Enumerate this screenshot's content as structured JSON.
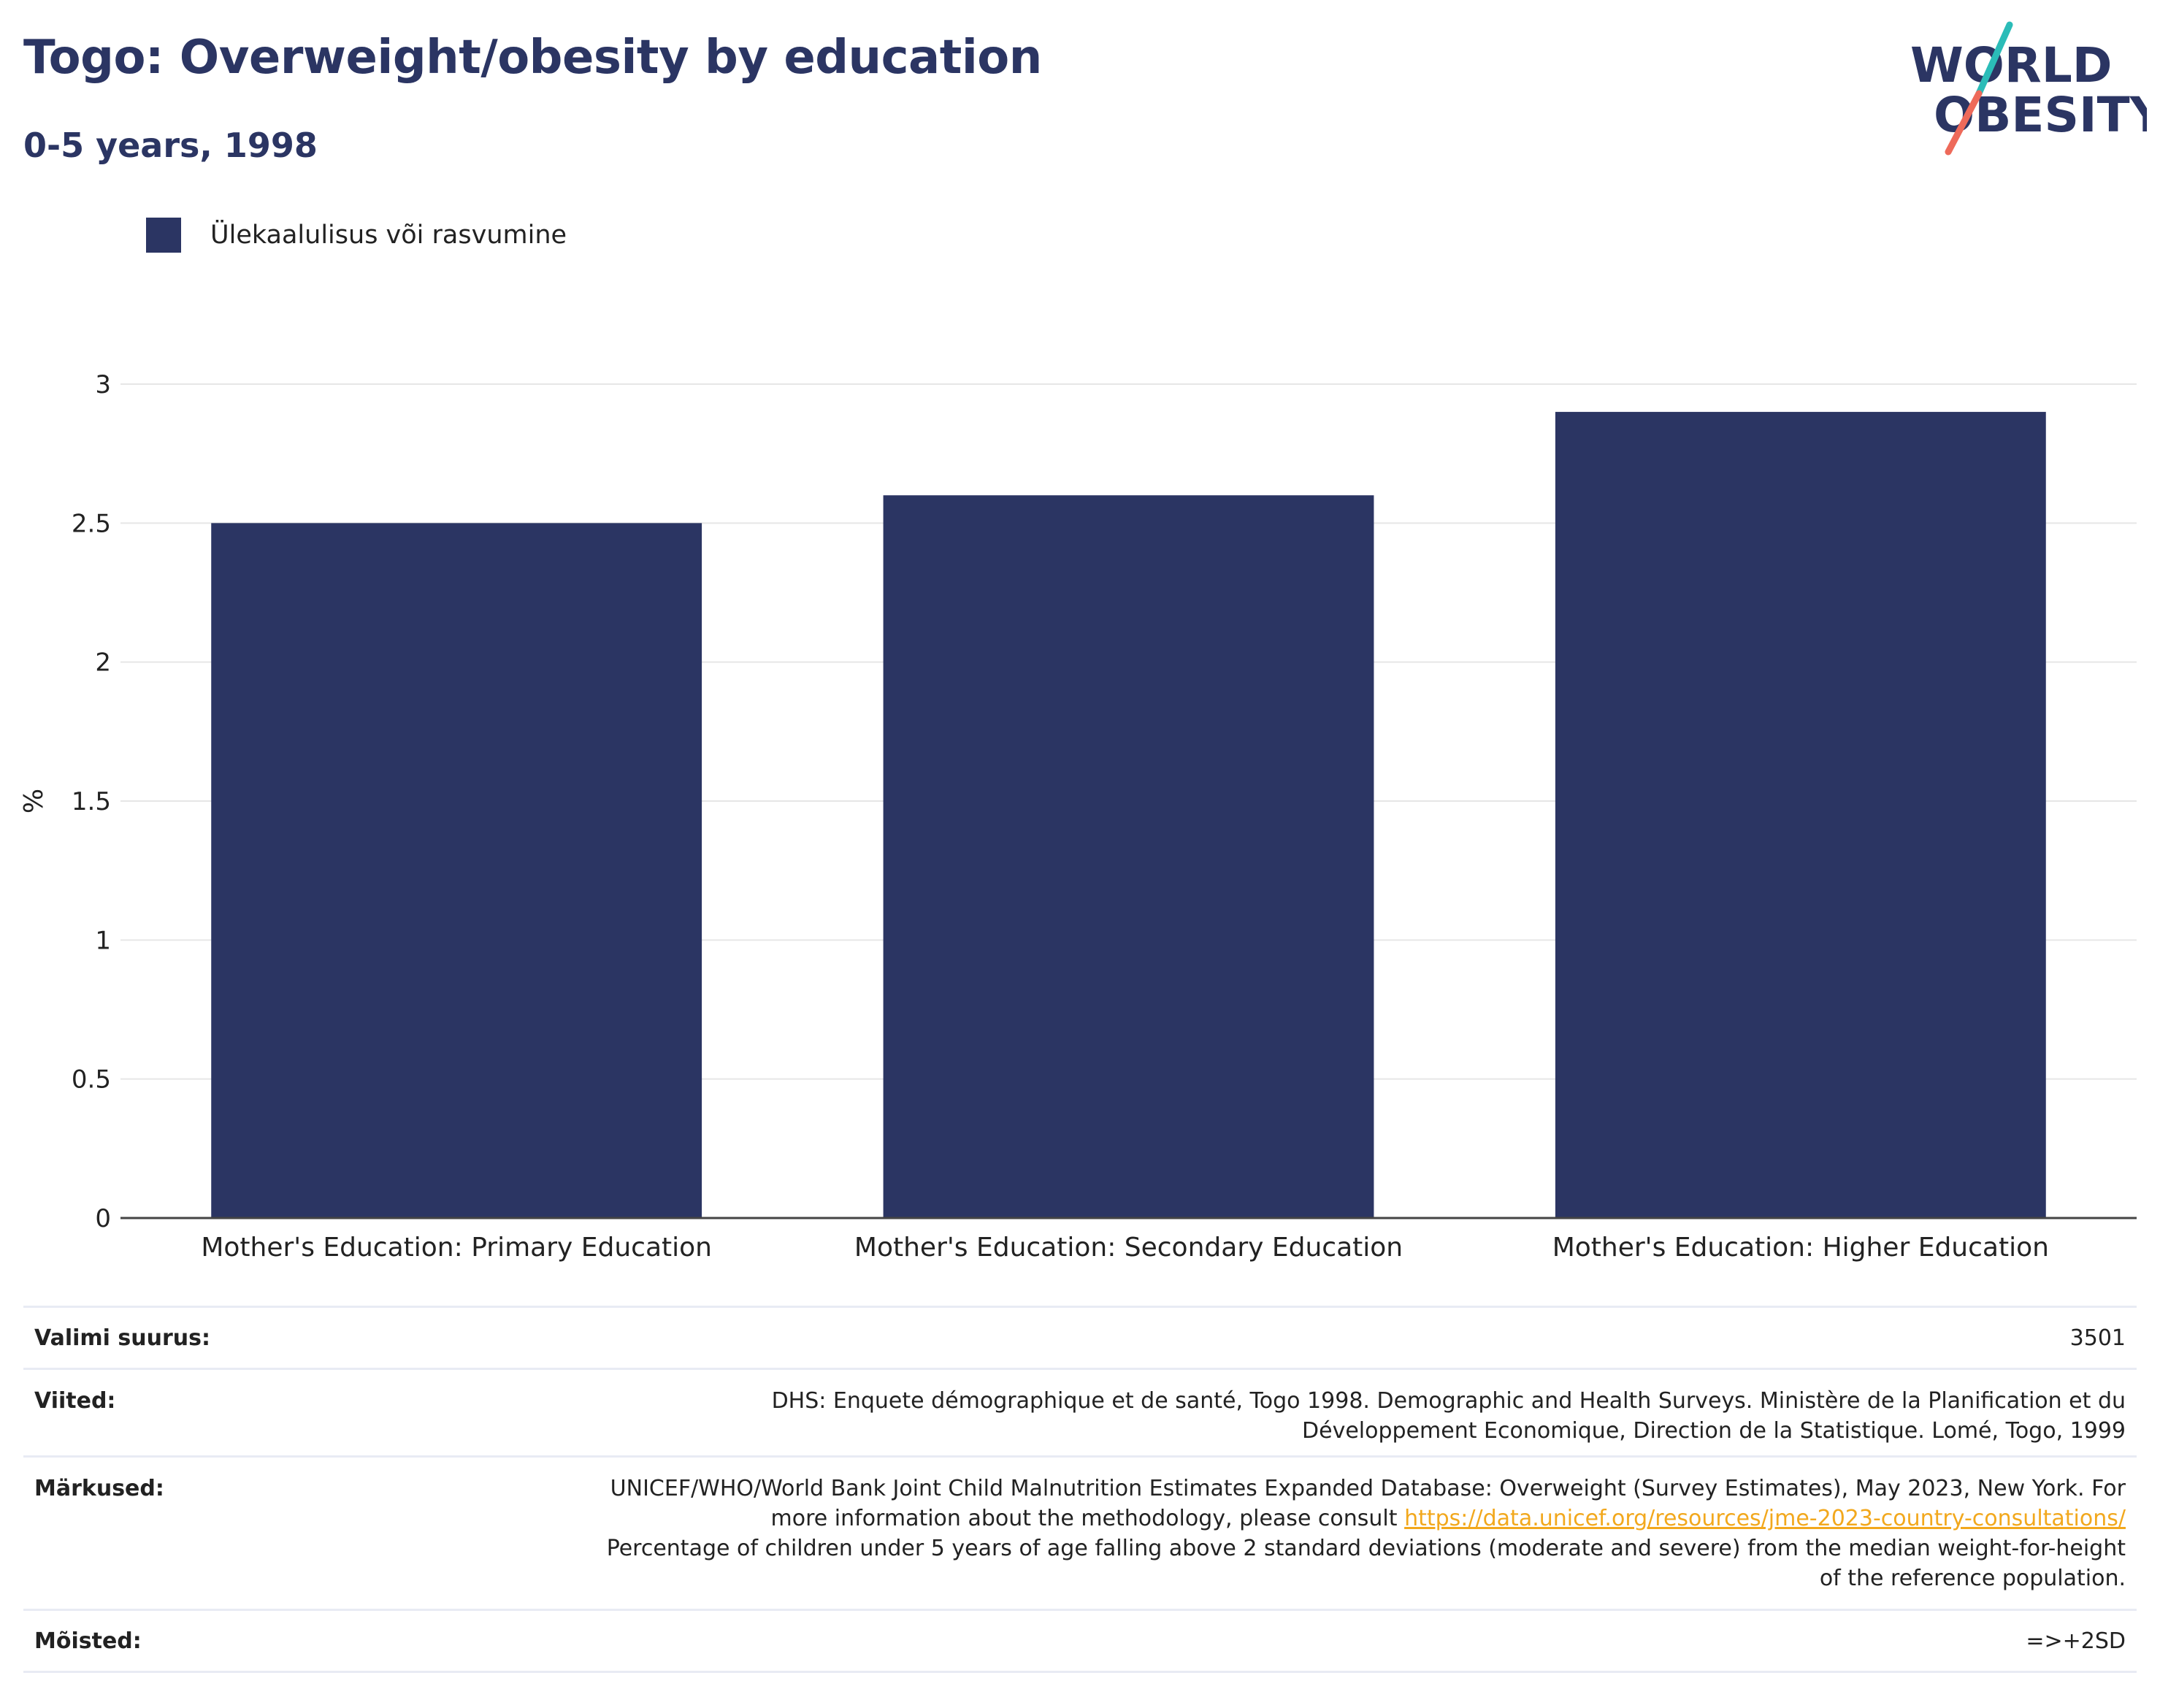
{
  "header": {
    "title": "Togo: Overweight/obesity by education",
    "subtitle": "0-5 years, 1998",
    "logo_line1": "WORLD",
    "logo_line2": "OBESITY"
  },
  "colors": {
    "bar": "#2b3563",
    "title": "#2b3563",
    "gridline": "#e6e6e6",
    "link": "#f2a81d",
    "logo_teal": "#2bbcb8",
    "logo_coral": "#ee6a5a"
  },
  "chart_data": {
    "type": "bar",
    "title": "Togo: Overweight/obesity by education",
    "subtitle": "0-5 years, 1998",
    "categories": [
      "Mother's Education: Primary Education",
      "Mother's Education: Secondary Education",
      "Mother's Education: Higher Education"
    ],
    "series": [
      {
        "name": "Ülekaalulisus või rasvumine",
        "values": [
          2.5,
          2.6,
          2.9
        ]
      }
    ],
    "xlabel": "",
    "ylabel": "%",
    "ylim": [
      0,
      3
    ],
    "yticks": [
      0,
      0.5,
      1,
      1.5,
      2,
      2.5,
      3
    ],
    "ytick_labels": [
      "0",
      "0.5",
      "1",
      "1.5",
      "2",
      "2.5",
      "3"
    ],
    "grid": true,
    "legend": "top-left"
  },
  "info": {
    "sample_label": "Valimi suurus:",
    "sample_value": "3501",
    "refs_label": "Viited:",
    "refs_value": "DHS: Enquete démographique et de santé, Togo 1998. Demographic and Health Surveys. Ministère de la Planification et du Développement Economique, Direction de la Statistique. Lomé, Togo, 1999",
    "notes_label": "Märkused:",
    "notes_text_1": "UNICEF/WHO/World Bank Joint Child Malnutrition Estimates Expanded Database: Overweight (Survey Estimates), May 2023, New York. For more information about the methodology, please consult",
    "notes_link": "https://data.unicef.org/resources/jme-2023-country-consultations/",
    "notes_text_2": "Percentage of children under 5 years of age falling above 2 standard deviations (moderate and severe) from the median weight-for-height of the reference population.",
    "defs_label": "Mõisted:",
    "defs_value": "=>+2SD"
  }
}
